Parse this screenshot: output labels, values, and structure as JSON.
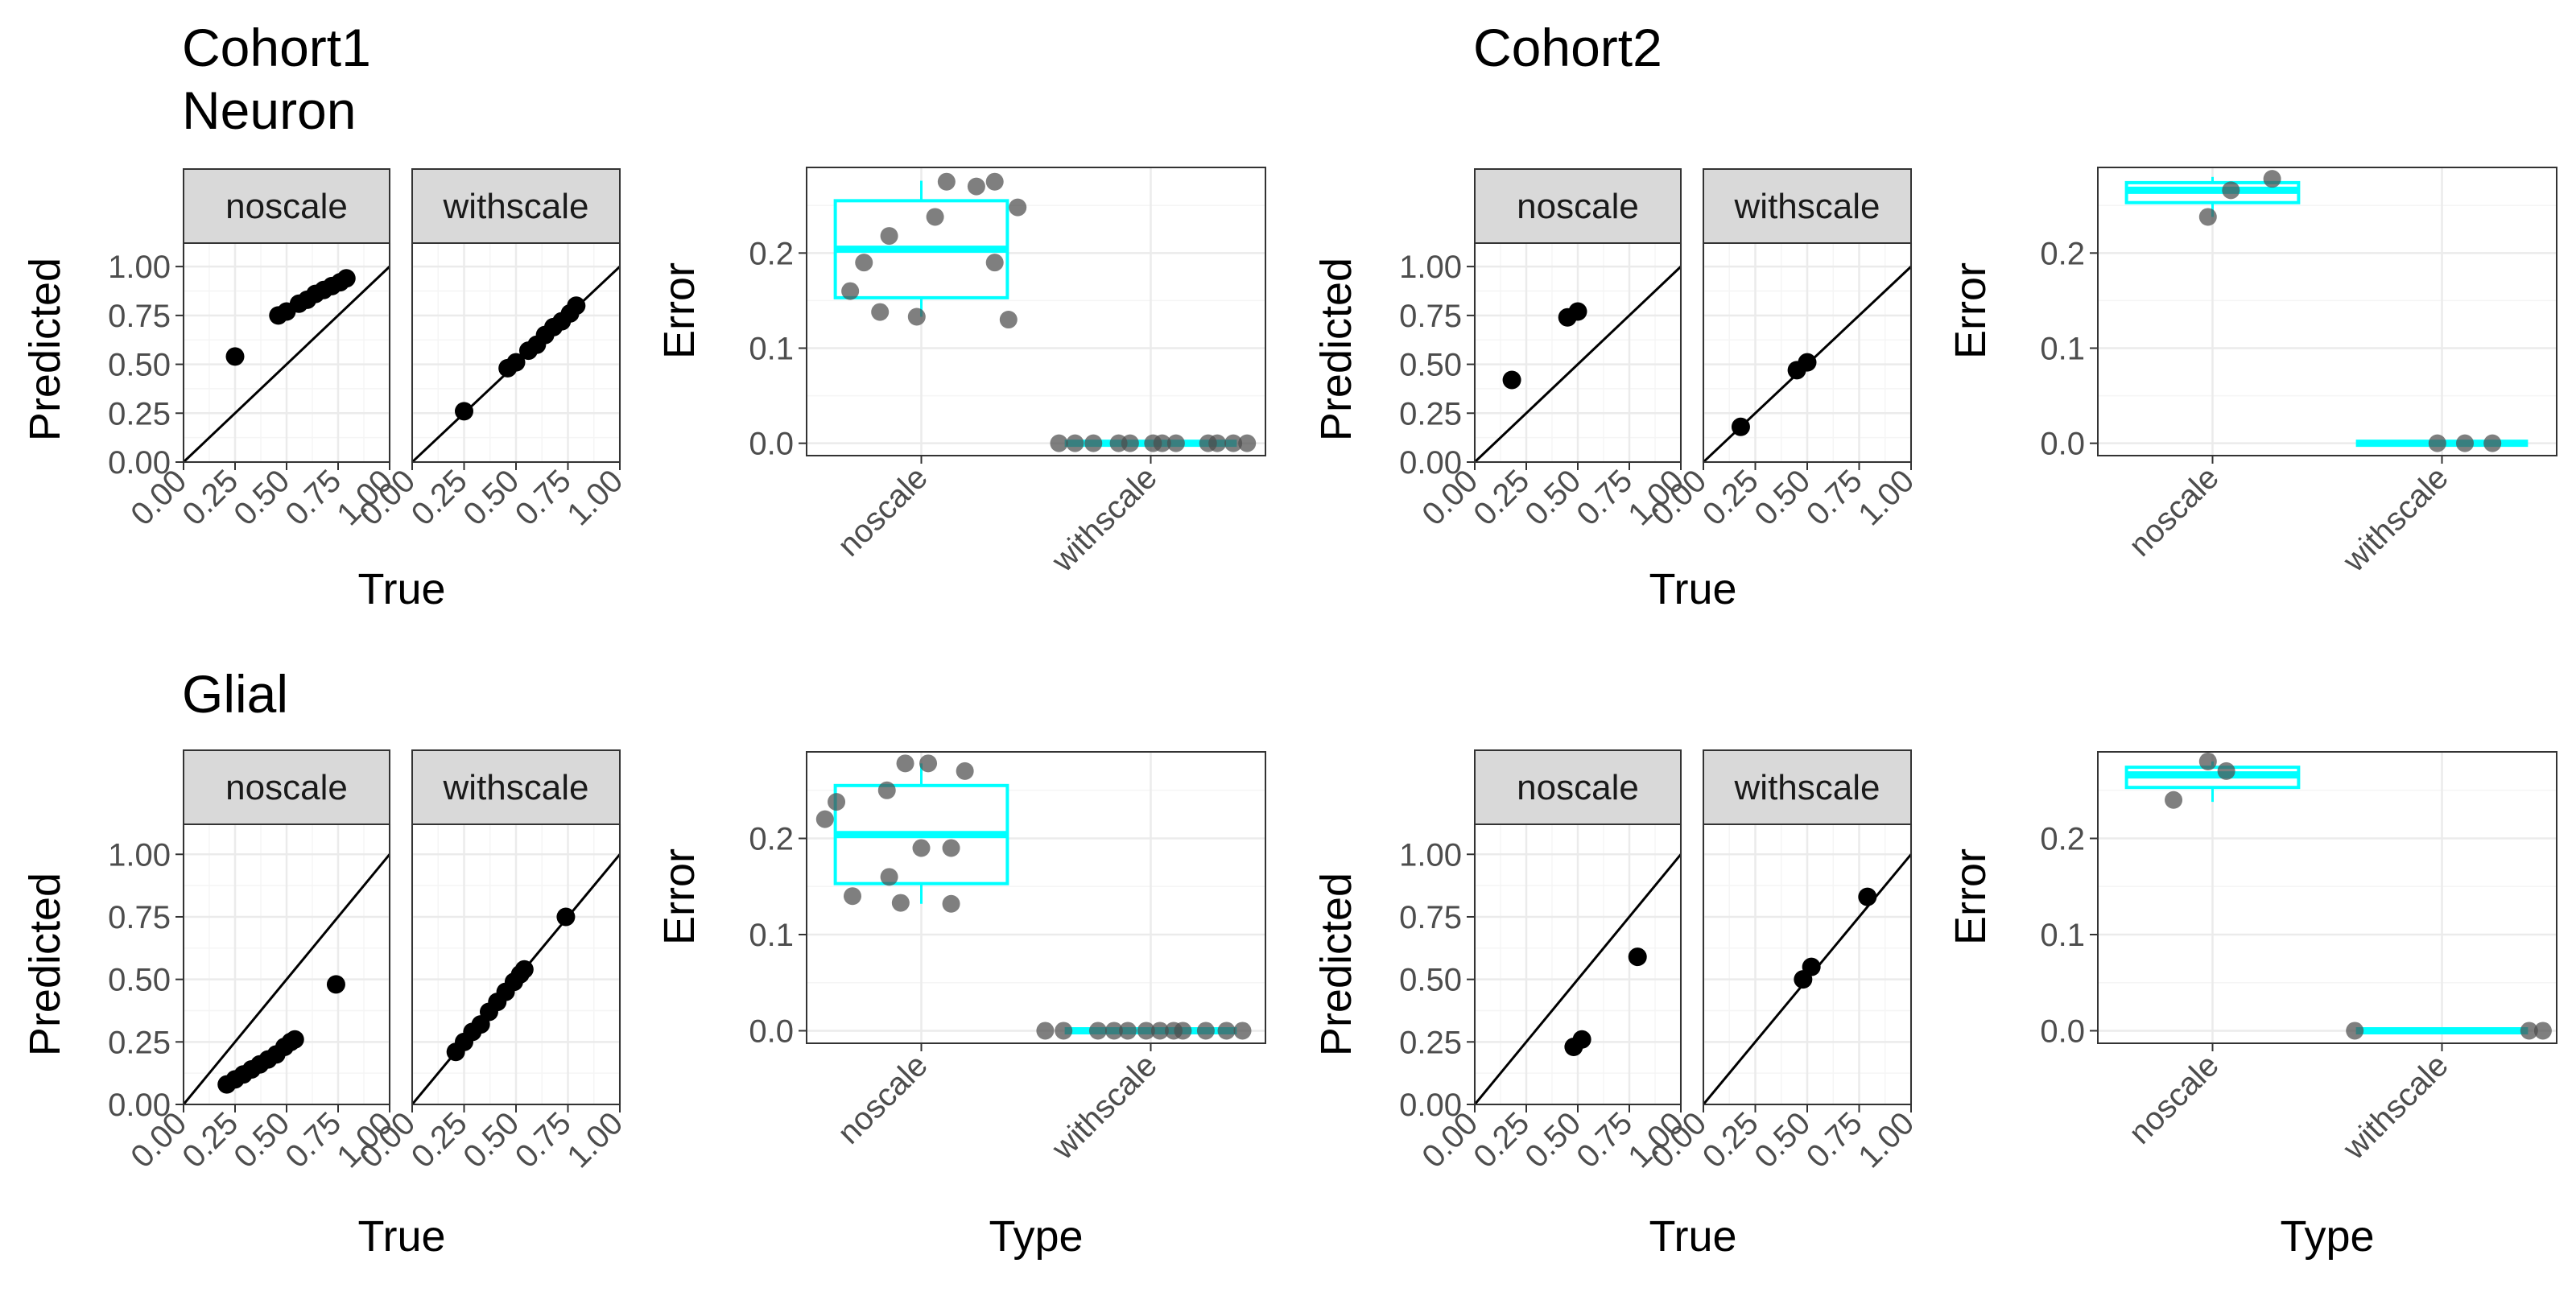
{
  "figure": {
    "row_titles": [
      {
        "id": "title-cohort1",
        "lines": [
          "Cohort1",
          "Neuron"
        ]
      },
      {
        "id": "title-cohort2",
        "lines": [
          "Cohort2"
        ]
      },
      {
        "id": "title-glial",
        "lines": [
          "Glial"
        ]
      }
    ]
  },
  "colors": {
    "point": "#000000",
    "jitter_point": "#4d4d4d",
    "box": "#00ffff",
    "strip_fill": "#d9d9d9",
    "panel_border": "#333333",
    "grid_major": "#ebebeb",
    "grid_minor": "#f5f5f5"
  },
  "chart_data": [
    {
      "id": "cohort1-neuron-scatter",
      "type": "scatter",
      "xlabel": "True",
      "ylabel": "Predicted",
      "xlim": [
        0,
        1
      ],
      "ylim": [
        0,
        1.12
      ],
      "xticks": [
        "0.00",
        "0.25",
        "0.50",
        "0.75",
        "1.00"
      ],
      "yticks": [
        "0.00",
        "0.25",
        "0.50",
        "0.75",
        "1.00"
      ],
      "identity_line": true,
      "facets": [
        {
          "label": "noscale",
          "points": [
            [
              0.25,
              0.54
            ],
            [
              0.46,
              0.75
            ],
            [
              0.5,
              0.77
            ],
            [
              0.56,
              0.81
            ],
            [
              0.6,
              0.83
            ],
            [
              0.64,
              0.86
            ],
            [
              0.68,
              0.88
            ],
            [
              0.72,
              0.9
            ],
            [
              0.76,
              0.92
            ],
            [
              0.79,
              0.94
            ]
          ]
        },
        {
          "label": "withscale",
          "points": [
            [
              0.25,
              0.26
            ],
            [
              0.46,
              0.48
            ],
            [
              0.5,
              0.51
            ],
            [
              0.56,
              0.57
            ],
            [
              0.6,
              0.6
            ],
            [
              0.64,
              0.65
            ],
            [
              0.68,
              0.69
            ],
            [
              0.72,
              0.72
            ],
            [
              0.76,
              0.76
            ],
            [
              0.79,
              0.8
            ]
          ]
        }
      ]
    },
    {
      "id": "cohort1-neuron-error",
      "type": "box",
      "xlabel": "",
      "ylabel": "Error",
      "categories": [
        "noscale",
        "withscale"
      ],
      "ylim": [
        -0.013,
        0.29
      ],
      "yticks": [
        0.0,
        0.1,
        0.2
      ],
      "ytick_labels": [
        "0.0",
        "0.1",
        "0.2"
      ],
      "boxes": [
        {
          "category": "noscale",
          "q1": 0.153,
          "median": 0.204,
          "q3": 0.255,
          "whisker_low": 0.133,
          "whisker_high": 0.276
        },
        {
          "category": "withscale",
          "q1": 0.0,
          "median": 0.0,
          "q3": 0.0,
          "whisker_low": 0.0,
          "whisker_high": 0.0
        }
      ],
      "points": [
        {
          "category": "noscale",
          "jitter": -0.31,
          "value": 0.16
        },
        {
          "category": "noscale",
          "jitter": -0.25,
          "value": 0.19
        },
        {
          "category": "noscale",
          "jitter": -0.18,
          "value": 0.138
        },
        {
          "category": "noscale",
          "jitter": -0.14,
          "value": 0.218
        },
        {
          "category": "noscale",
          "jitter": -0.02,
          "value": 0.133
        },
        {
          "category": "noscale",
          "jitter": 0.06,
          "value": 0.238
        },
        {
          "category": "noscale",
          "jitter": 0.11,
          "value": 0.275
        },
        {
          "category": "noscale",
          "jitter": 0.24,
          "value": 0.27
        },
        {
          "category": "noscale",
          "jitter": 0.32,
          "value": 0.275
        },
        {
          "category": "noscale",
          "jitter": 0.32,
          "value": 0.19
        },
        {
          "category": "noscale",
          "jitter": 0.38,
          "value": 0.13
        },
        {
          "category": "noscale",
          "jitter": 0.42,
          "value": 0.248
        },
        {
          "category": "withscale",
          "jitter": -0.4,
          "value": 0.0
        },
        {
          "category": "withscale",
          "jitter": -0.33,
          "value": 0.0
        },
        {
          "category": "withscale",
          "jitter": -0.25,
          "value": 0.0
        },
        {
          "category": "withscale",
          "jitter": -0.14,
          "value": 0.0
        },
        {
          "category": "withscale",
          "jitter": -0.09,
          "value": 0.0
        },
        {
          "category": "withscale",
          "jitter": 0.01,
          "value": 0.0
        },
        {
          "category": "withscale",
          "jitter": 0.05,
          "value": 0.0
        },
        {
          "category": "withscale",
          "jitter": 0.11,
          "value": 0.0
        },
        {
          "category": "withscale",
          "jitter": 0.25,
          "value": 0.0
        },
        {
          "category": "withscale",
          "jitter": 0.29,
          "value": 0.0
        },
        {
          "category": "withscale",
          "jitter": 0.36,
          "value": 0.0
        },
        {
          "category": "withscale",
          "jitter": 0.42,
          "value": 0.0
        }
      ]
    },
    {
      "id": "cohort2-neuron-scatter",
      "type": "scatter",
      "xlabel": "True",
      "ylabel": "Predicted",
      "xlim": [
        0,
        1
      ],
      "ylim": [
        0,
        1.12
      ],
      "xticks": [
        "0.00",
        "0.25",
        "0.50",
        "0.75",
        "1.00"
      ],
      "yticks": [
        "0.00",
        "0.25",
        "0.50",
        "0.75",
        "1.00"
      ],
      "identity_line": true,
      "facets": [
        {
          "label": "noscale",
          "points": [
            [
              0.18,
              0.42
            ],
            [
              0.45,
              0.74
            ],
            [
              0.5,
              0.77
            ]
          ]
        },
        {
          "label": "withscale",
          "points": [
            [
              0.18,
              0.18
            ],
            [
              0.45,
              0.47
            ],
            [
              0.5,
              0.51
            ]
          ]
        }
      ]
    },
    {
      "id": "cohort2-neuron-error",
      "type": "box",
      "xlabel": "",
      "ylabel": "Error",
      "categories": [
        "noscale",
        "withscale"
      ],
      "ylim": [
        -0.013,
        0.29
      ],
      "yticks": [
        0.0,
        0.1,
        0.2
      ],
      "ytick_labels": [
        "0.0",
        "0.1",
        "0.2"
      ],
      "boxes": [
        {
          "category": "noscale",
          "q1": 0.253,
          "median": 0.266,
          "q3": 0.274,
          "whisker_low": 0.238,
          "whisker_high": 0.28
        },
        {
          "category": "withscale",
          "q1": 0.0,
          "median": 0.0,
          "q3": 0.0,
          "whisker_low": 0.0,
          "whisker_high": 0.0
        }
      ],
      "points": [
        {
          "category": "noscale",
          "jitter": -0.02,
          "value": 0.238
        },
        {
          "category": "noscale",
          "jitter": 0.08,
          "value": 0.266
        },
        {
          "category": "noscale",
          "jitter": 0.26,
          "value": 0.278
        },
        {
          "category": "withscale",
          "jitter": -0.02,
          "value": 0.0
        },
        {
          "category": "withscale",
          "jitter": 0.1,
          "value": 0.0
        },
        {
          "category": "withscale",
          "jitter": 0.22,
          "value": 0.0
        }
      ]
    },
    {
      "id": "cohort1-glial-scatter",
      "type": "scatter",
      "xlabel": "True",
      "ylabel": "Predicted",
      "xlim": [
        0,
        1
      ],
      "ylim": [
        0,
        1.12
      ],
      "xticks": [
        "0.00",
        "0.25",
        "0.50",
        "0.75",
        "1.00"
      ],
      "yticks": [
        "0.00",
        "0.25",
        "0.50",
        "0.75",
        "1.00"
      ],
      "identity_line": true,
      "facets": [
        {
          "label": "noscale",
          "points": [
            [
              0.21,
              0.08
            ],
            [
              0.25,
              0.1
            ],
            [
              0.29,
              0.12
            ],
            [
              0.33,
              0.14
            ],
            [
              0.37,
              0.16
            ],
            [
              0.41,
              0.18
            ],
            [
              0.45,
              0.2
            ],
            [
              0.49,
              0.23
            ],
            [
              0.52,
              0.25
            ],
            [
              0.54,
              0.26
            ],
            [
              0.74,
              0.48
            ]
          ]
        },
        {
          "label": "withscale",
          "points": [
            [
              0.21,
              0.21
            ],
            [
              0.25,
              0.25
            ],
            [
              0.29,
              0.29
            ],
            [
              0.33,
              0.32
            ],
            [
              0.37,
              0.37
            ],
            [
              0.41,
              0.41
            ],
            [
              0.45,
              0.45
            ],
            [
              0.49,
              0.49
            ],
            [
              0.52,
              0.52
            ],
            [
              0.54,
              0.54
            ],
            [
              0.74,
              0.75
            ]
          ]
        }
      ]
    },
    {
      "id": "cohort1-glial-error",
      "type": "box",
      "xlabel": "Type",
      "ylabel": "Error",
      "categories": [
        "noscale",
        "withscale"
      ],
      "ylim": [
        -0.013,
        0.29
      ],
      "yticks": [
        0.0,
        0.1,
        0.2
      ],
      "ytick_labels": [
        "0.0",
        "0.1",
        "0.2"
      ],
      "boxes": [
        {
          "category": "noscale",
          "q1": 0.153,
          "median": 0.204,
          "q3": 0.255,
          "whisker_low": 0.132,
          "whisker_high": 0.278
        },
        {
          "category": "withscale",
          "q1": 0.0,
          "median": 0.0,
          "q3": 0.0,
          "whisker_low": 0.0,
          "whisker_high": 0.0
        }
      ],
      "points": [
        {
          "category": "noscale",
          "jitter": -0.42,
          "value": 0.22
        },
        {
          "category": "noscale",
          "jitter": -0.37,
          "value": 0.238
        },
        {
          "category": "noscale",
          "jitter": -0.3,
          "value": 0.14
        },
        {
          "category": "noscale",
          "jitter": -0.14,
          "value": 0.16
        },
        {
          "category": "noscale",
          "jitter": -0.15,
          "value": 0.25
        },
        {
          "category": "noscale",
          "jitter": -0.09,
          "value": 0.133
        },
        {
          "category": "noscale",
          "jitter": -0.07,
          "value": 0.278
        },
        {
          "category": "noscale",
          "jitter": 0.0,
          "value": 0.19
        },
        {
          "category": "noscale",
          "jitter": 0.03,
          "value": 0.278
        },
        {
          "category": "noscale",
          "jitter": 0.13,
          "value": 0.19
        },
        {
          "category": "noscale",
          "jitter": 0.13,
          "value": 0.132
        },
        {
          "category": "noscale",
          "jitter": 0.19,
          "value": 0.27
        },
        {
          "category": "withscale",
          "jitter": -0.46,
          "value": 0.0
        },
        {
          "category": "withscale",
          "jitter": -0.38,
          "value": 0.0
        },
        {
          "category": "withscale",
          "jitter": -0.23,
          "value": 0.0
        },
        {
          "category": "withscale",
          "jitter": -0.16,
          "value": 0.0
        },
        {
          "category": "withscale",
          "jitter": -0.1,
          "value": 0.0
        },
        {
          "category": "withscale",
          "jitter": -0.02,
          "value": 0.0
        },
        {
          "category": "withscale",
          "jitter": 0.04,
          "value": 0.0
        },
        {
          "category": "withscale",
          "jitter": 0.1,
          "value": 0.0
        },
        {
          "category": "withscale",
          "jitter": 0.14,
          "value": 0.0
        },
        {
          "category": "withscale",
          "jitter": 0.24,
          "value": 0.0
        },
        {
          "category": "withscale",
          "jitter": 0.33,
          "value": 0.0
        },
        {
          "category": "withscale",
          "jitter": 0.4,
          "value": 0.0
        }
      ]
    },
    {
      "id": "cohort2-glial-scatter",
      "type": "scatter",
      "xlabel": "True",
      "ylabel": "Predicted",
      "xlim": [
        0,
        1
      ],
      "ylim": [
        0,
        1.12
      ],
      "xticks": [
        "0.00",
        "0.25",
        "0.50",
        "0.75",
        "1.00"
      ],
      "yticks": [
        "0.00",
        "0.25",
        "0.50",
        "0.75",
        "1.00"
      ],
      "identity_line": true,
      "facets": [
        {
          "label": "noscale",
          "points": [
            [
              0.48,
              0.23
            ],
            [
              0.52,
              0.26
            ],
            [
              0.79,
              0.59
            ]
          ]
        },
        {
          "label": "withscale",
          "points": [
            [
              0.48,
              0.5
            ],
            [
              0.52,
              0.55
            ],
            [
              0.79,
              0.83
            ]
          ]
        }
      ]
    },
    {
      "id": "cohort2-glial-error",
      "type": "box",
      "xlabel": "Type",
      "ylabel": "Error",
      "categories": [
        "noscale",
        "withscale"
      ],
      "ylim": [
        -0.013,
        0.29
      ],
      "yticks": [
        0.0,
        0.1,
        0.2
      ],
      "ytick_labels": [
        "0.0",
        "0.1",
        "0.2"
      ],
      "boxes": [
        {
          "category": "noscale",
          "q1": 0.253,
          "median": 0.266,
          "q3": 0.274,
          "whisker_low": 0.238,
          "whisker_high": 0.28
        },
        {
          "category": "withscale",
          "q1": 0.0,
          "median": 0.0,
          "q3": 0.0,
          "whisker_low": 0.0,
          "whisker_high": 0.0
        }
      ],
      "points": [
        {
          "category": "noscale",
          "jitter": -0.17,
          "value": 0.24
        },
        {
          "category": "noscale",
          "jitter": -0.02,
          "value": 0.28
        },
        {
          "category": "noscale",
          "jitter": 0.06,
          "value": 0.27
        },
        {
          "category": "withscale",
          "jitter": -0.38,
          "value": 0.0
        },
        {
          "category": "withscale",
          "jitter": 0.38,
          "value": 0.0
        },
        {
          "category": "withscale",
          "jitter": 0.44,
          "value": 0.0
        }
      ]
    }
  ]
}
